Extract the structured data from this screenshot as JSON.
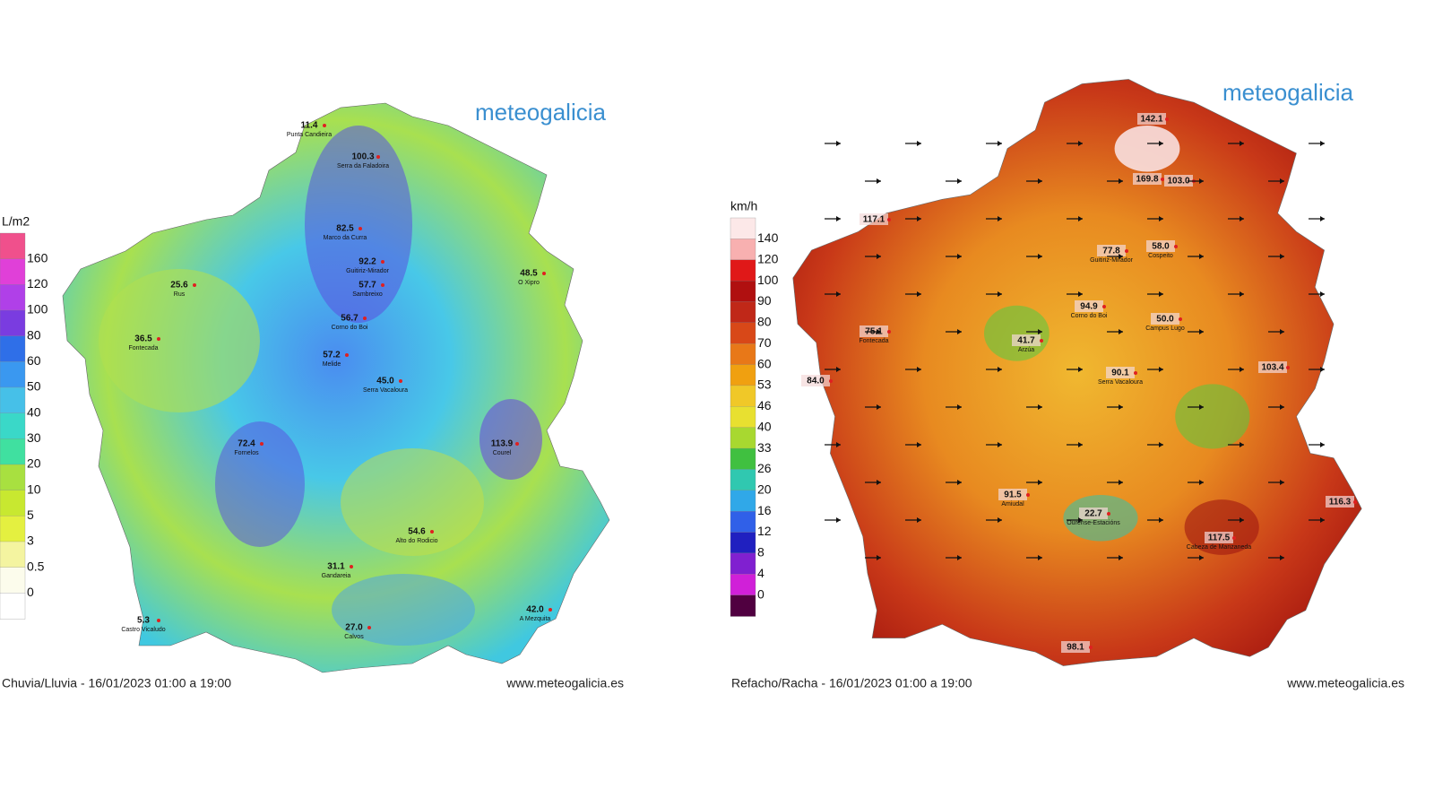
{
  "maps": [
    {
      "logo": "meteogalicia",
      "unit": "L/m2",
      "caption": "Chuvia/Lluvia - 16/01/2023 01:00 a 19:00",
      "site": "www.meteogalicia.es",
      "legend": {
        "labels": [
          "160",
          "120",
          "100",
          "80",
          "60",
          "50",
          "40",
          "30",
          "20",
          "10",
          "5",
          "3",
          "0.5",
          "0"
        ],
        "colors": [
          "#f0508c",
          "#e040d8",
          "#b040e8",
          "#7a3ce0",
          "#2f6fe8",
          "#3a98f0",
          "#46c0e8",
          "#3ad8c8",
          "#40e0a0",
          "#a8e040",
          "#c8e830",
          "#e4f040",
          "#f4f4a0",
          "#fcfcec",
          "#ffffff"
        ]
      },
      "stations": [
        {
          "value": "11.4",
          "name": "Punta Candieira"
        },
        {
          "value": "100.3",
          "name": "Serra da Faladoira"
        },
        {
          "value": "82.5",
          "name": "Marco da Curra"
        },
        {
          "value": "92.2",
          "name": "Guitiriz-Mirador"
        },
        {
          "value": "57.7",
          "name": "Sambreixo"
        },
        {
          "value": "56.7",
          "name": "Corno do Boi"
        },
        {
          "value": "25.6",
          "name": "Rus"
        },
        {
          "value": "36.5",
          "name": "Fontecada"
        },
        {
          "value": "48.5",
          "name": "O Xipro"
        },
        {
          "value": "57.2",
          "name": "Melide"
        },
        {
          "value": "45.0",
          "name": "Serra Vacaloura"
        },
        {
          "value": "113.9",
          "name": "Courel"
        },
        {
          "value": "72.4",
          "name": "Fornelos"
        },
        {
          "value": "54.6",
          "name": "Alto do Rodicio"
        },
        {
          "value": "31.1",
          "name": "Gandareia"
        },
        {
          "value": "27.0",
          "name": "Calvos"
        },
        {
          "value": "5.3",
          "name": "Castro Vicaludo"
        },
        {
          "value": "42.0",
          "name": "A Mezquita"
        }
      ]
    },
    {
      "logo": "meteogalicia",
      "unit": "km/h",
      "caption": "Refacho/Racha - 16/01/2023 01:00 a 19:00",
      "site": "www.meteogalicia.es",
      "legend": {
        "labels": [
          "140",
          "120",
          "100",
          "90",
          "80",
          "70",
          "60",
          "53",
          "46",
          "40",
          "33",
          "26",
          "20",
          "16",
          "12",
          "8",
          "4",
          "0"
        ],
        "colors": [
          "#fce8e8",
          "#f8b0b0",
          "#e01818",
          "#b01010",
          "#c02818",
          "#d84818",
          "#e87818",
          "#f0a010",
          "#f0c828",
          "#e8e030",
          "#a8d830",
          "#40c040",
          "#30c8b0",
          "#30a8e8",
          "#3060e8",
          "#2020c0",
          "#8020d0",
          "#d020d8",
          "#500040"
        ]
      },
      "stations": [
        {
          "value": "117.1"
        },
        {
          "value": "142.1"
        },
        {
          "value": "169.8"
        },
        {
          "value": "103.0"
        },
        {
          "value": "77.8",
          "name": "Guitiriz-Mirador"
        },
        {
          "value": "58.0",
          "name": "Cospeito"
        },
        {
          "value": "94.9",
          "name": "Corno do Boi"
        },
        {
          "value": "50.0",
          "name": "Campus Lugo"
        },
        {
          "value": "75.1",
          "name": "Fontecada"
        },
        {
          "value": "41.7",
          "name": "Arzúa"
        },
        {
          "value": "90.1",
          "name": "Serra Vacaloura"
        },
        {
          "value": "103.4"
        },
        {
          "value": "91.5",
          "name": "Amiudal"
        },
        {
          "value": "117.5",
          "name": "Cabeza de Manzaneda"
        },
        {
          "value": "116.3"
        },
        {
          "value": "98.1"
        },
        {
          "value": "22.7",
          "name": "Ourense-Estacións"
        },
        {
          "value": "84.0"
        }
      ]
    }
  ]
}
